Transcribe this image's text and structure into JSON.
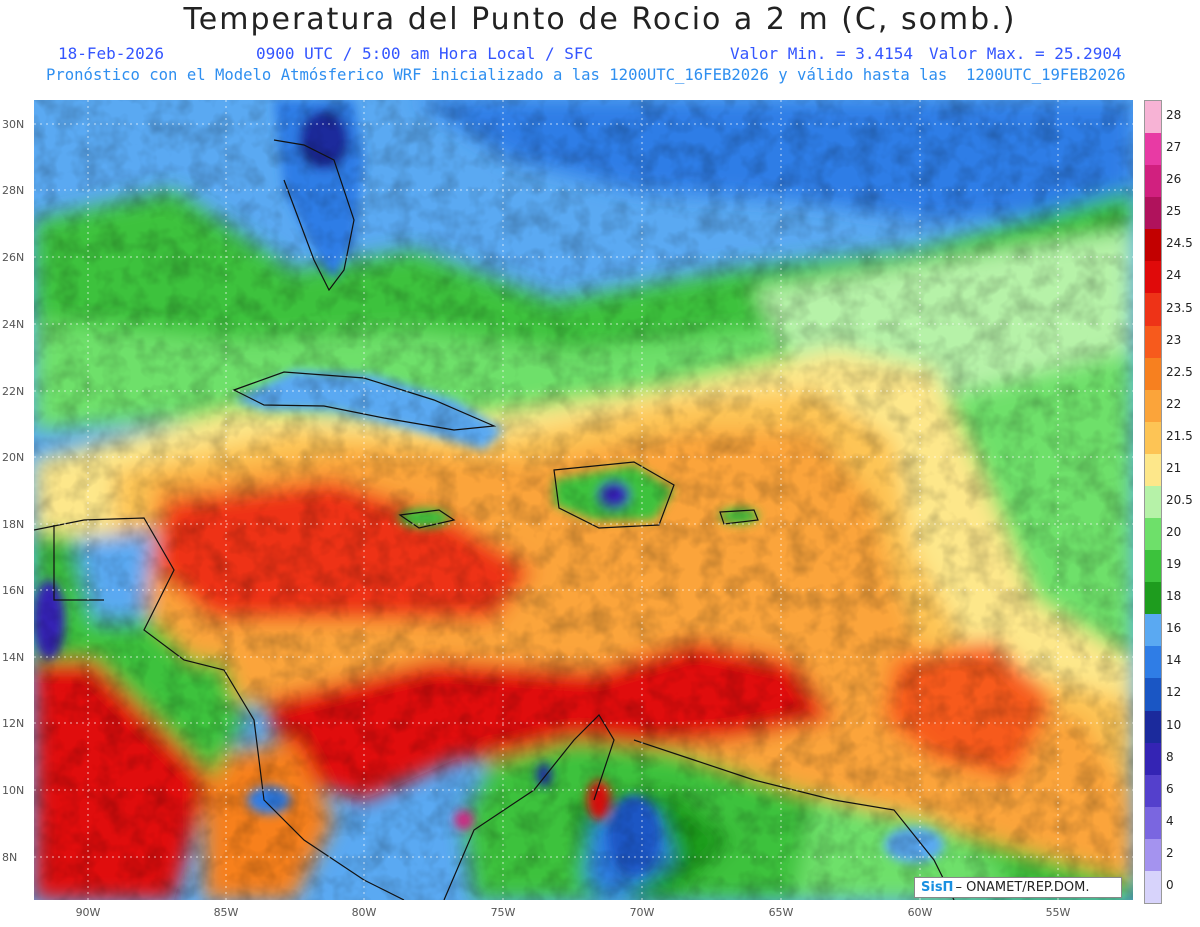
{
  "title": "Temperatura del Punto de Rocio a 2 m (C, somb.)",
  "date": "18-Feb-2026",
  "time": "0900 UTC / 5:00 am Hora Local / SFC",
  "min_text": "Valor Min. = 3.4154",
  "max_text": "Valor Max. = 25.2904",
  "model_text": "Pronóstico con el Modelo Atmósferico WRF inicializado a las 1200UTC_16FEB2026 y válido hasta las  1200UTC_19FEB2026",
  "lat_labels": [
    "30N",
    "28N",
    "26N",
    "24N",
    "22N",
    "20N",
    "18N",
    "16N",
    "14N",
    "12N",
    "10N",
    "8N"
  ],
  "lon_labels": [
    "90W",
    "85W",
    "80W",
    "75W",
    "70W",
    "65W",
    "60W",
    "55W"
  ],
  "colorbar": {
    "labels": [
      "28",
      "27",
      "26",
      "25",
      "24.5",
      "24",
      "23.5",
      "23",
      "22.5",
      "22",
      "21.5",
      "21",
      "20.5",
      "20",
      "19",
      "18",
      "16",
      "14",
      "12",
      "10",
      "8",
      "6",
      "4",
      "2",
      "0"
    ],
    "colors": [
      "#f7b3d5",
      "#e83aa4",
      "#d1207f",
      "#b0125c",
      "#c20000",
      "#e00a0a",
      "#ee3317",
      "#f75a1c",
      "#f7801f",
      "#fba43a",
      "#fdc455",
      "#fde78a",
      "#b6f2a8",
      "#6ee06a",
      "#3cc23c",
      "#1e9c1e",
      "#5aa9f2",
      "#2f7de6",
      "#1a56c4",
      "#1b2a9c",
      "#3424b4",
      "#5440cc",
      "#7a66e0",
      "#a493ef",
      "#d7d3fb"
    ]
  },
  "credit": {
    "logo": "SisΠ",
    "text": "– ONAMET/REP.DOM."
  }
}
